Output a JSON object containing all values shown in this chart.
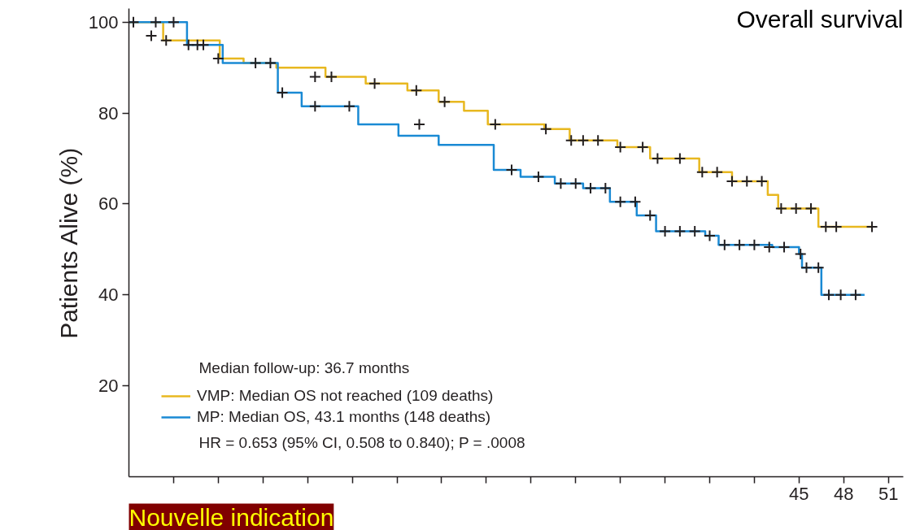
{
  "chart_data": {
    "type": "step",
    "title": "Overall survival",
    "ylabel": "Patients Alive (%)",
    "annotations": [
      "Median follow-up: 36.7 months",
      "HR = 0.653 (95% CI, 0.508 to 0.840); P = .0008",
      "Nouvelle indication"
    ],
    "xlim": [
      0,
      52
    ],
    "ylim": [
      0,
      103
    ],
    "xticks": [
      {
        "value": 3,
        "label": null
      },
      {
        "value": 6,
        "label": null
      },
      {
        "value": 9,
        "label": null
      },
      {
        "value": 12,
        "label": null
      },
      {
        "value": 15,
        "label": null
      },
      {
        "value": 18,
        "label": null
      },
      {
        "value": 21,
        "label": null
      },
      {
        "value": 24,
        "label": null
      },
      {
        "value": 27,
        "label": null
      },
      {
        "value": 30,
        "label": null
      },
      {
        "value": 33,
        "label": null
      },
      {
        "value": 36,
        "label": null
      },
      {
        "value": 39,
        "label": null
      },
      {
        "value": 42,
        "label": null
      },
      45,
      48,
      51
    ],
    "yticks": [
      20,
      40,
      60,
      80,
      100
    ],
    "grid": false,
    "legend": "bottom left",
    "line_style": "solid",
    "series": [
      {
        "name": "VMP: Median OS not reached (109 deaths)",
        "color": "#e8b820",
        "x": [
          0,
          2.3,
          6.1,
          7.7,
          9.9,
          13.2,
          15.9,
          18.7,
          20.8,
          22.5,
          24.1,
          27.9,
          29.6,
          32.8,
          35,
          38.3,
          40.5,
          42.9,
          43.6,
          46.3,
          49.9
        ],
        "values": [
          100,
          96,
          92,
          91,
          90,
          88,
          86.5,
          85,
          82.5,
          80.5,
          77.5,
          76.5,
          74,
          72.5,
          70,
          67,
          65,
          62,
          59,
          55,
          55
        ]
      },
      {
        "name": "MP: Median OS, 43.1 months (148 deaths)",
        "color": "#1a8ad4",
        "x": [
          0,
          3.9,
          6.3,
          10,
          11.6,
          15.4,
          18.1,
          20.8,
          24.5,
          26.3,
          28.6,
          30.5,
          32.3,
          34.1,
          35.4,
          38.7,
          39.6,
          43.2,
          45,
          45.2,
          46.5,
          49.4
        ],
        "values": [
          100,
          95,
          91,
          84.5,
          81.5,
          77.5,
          75,
          73,
          67.5,
          66,
          64.5,
          63.5,
          60.5,
          57.5,
          54,
          53,
          51,
          50.5,
          49,
          46,
          40,
          40
        ]
      },
      {
        "type": "scatter",
        "marker": "cross",
        "color": "#231f20",
        "x": [
          0.3,
          1.5,
          2.5,
          4,
          6,
          8.5,
          12.5,
          13.6,
          16.5,
          19.3,
          21.2,
          24.6,
          28,
          29.7,
          30.5,
          31.5,
          33,
          34.5,
          35.5,
          37,
          38.5,
          39.5,
          40.5,
          41.5,
          42.5,
          43.8,
          44.8,
          45.8,
          46.8,
          47.5,
          49.9
        ],
        "values": [
          100,
          97,
          96,
          95,
          92,
          91,
          88,
          88,
          86.5,
          85,
          82.5,
          77.5,
          76.5,
          74,
          74,
          74,
          72.5,
          72.5,
          70,
          70,
          67,
          67,
          65,
          65,
          65,
          59,
          59,
          59,
          55,
          55,
          55
        ]
      },
      {
        "type": "scatter",
        "marker": "cross",
        "color": "#231f20",
        "x": [
          1.8,
          3,
          4.6,
          5,
          9.5,
          10.3,
          12.5,
          14.8,
          19.5,
          25.7,
          27.5,
          29,
          30,
          31,
          32,
          33,
          34,
          35,
          36,
          37,
          38,
          39,
          40,
          41,
          42,
          43,
          44,
          45.1,
          45.5,
          46.3,
          47,
          47.8,
          48.8
        ],
        "values": [
          100,
          100,
          95,
          95,
          91,
          84.5,
          81.5,
          81.5,
          77.5,
          67.5,
          66,
          64.5,
          64.5,
          63.5,
          63.5,
          60.5,
          60.5,
          57.5,
          54,
          54,
          54,
          53,
          51,
          51,
          51,
          50.5,
          50.5,
          49,
          46,
          46,
          40,
          40,
          40
        ]
      }
    ]
  }
}
